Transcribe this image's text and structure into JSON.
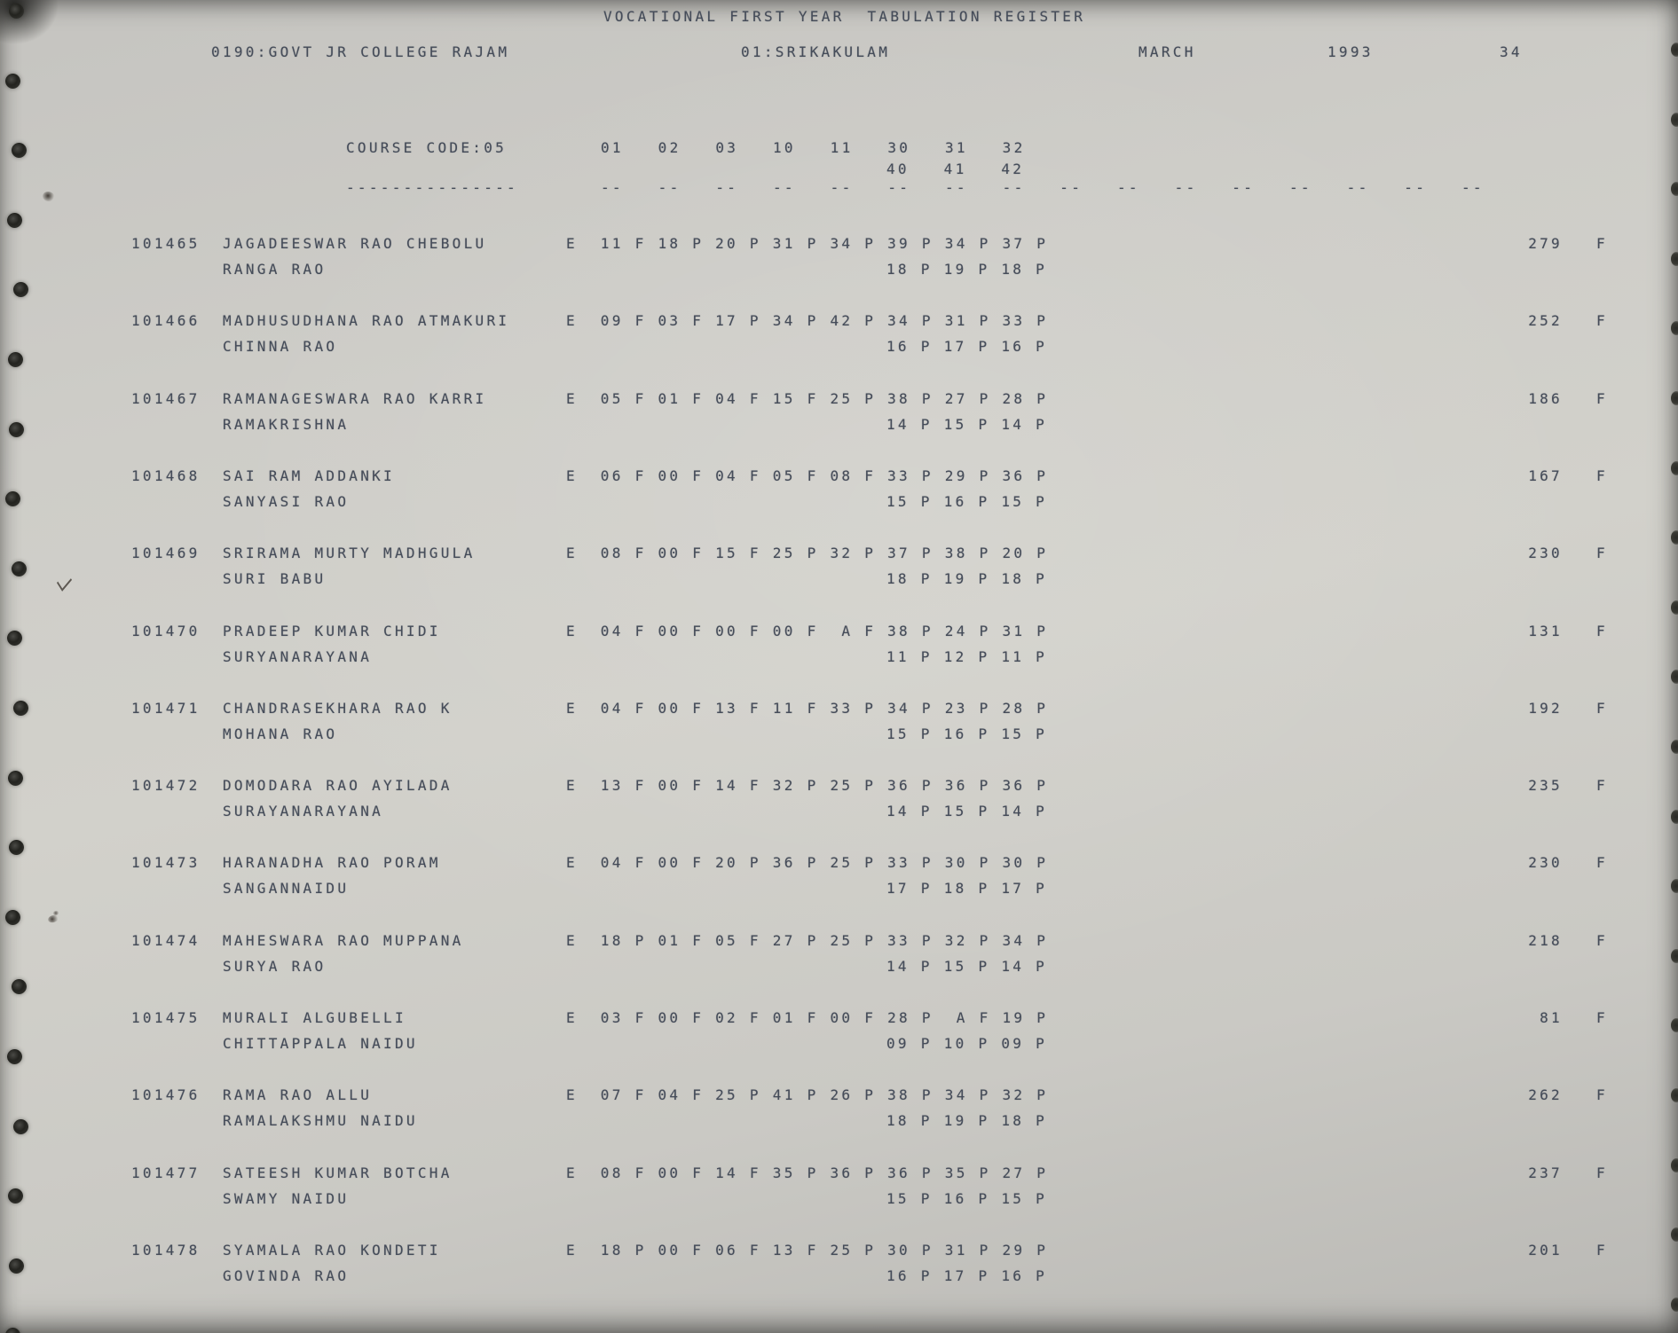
{
  "header": {
    "title": "VOCATIONAL FIRST YEAR  TABULATION REGISTER",
    "college": "0190:GOVT JR COLLEGE RAJAM",
    "district": "01:SRIKAKULAM",
    "month": "MARCH",
    "year": "1993",
    "page_number": "34"
  },
  "course": {
    "label": "COURSE CODE:05",
    "underline": "---------------",
    "columns_line1": "01   02   03   10   11   30   31   32",
    "columns_line2": "40   41   42",
    "column_dashes": "--   --   --   --   --   --   --   --   --   --   --   --   --   --   --   --"
  },
  "colors": {
    "paper": "#cecdc8",
    "ink": "#454c59"
  },
  "students": [
    {
      "roll": "101465",
      "name": "JAGADEESWAR RAO CHEBOLU",
      "guardian": "RANGA RAO",
      "marks1": "E  11 F 18 P 20 P 31 P 34 P 39 P 34 P 37 P",
      "marks2": "18 P 19 P 18 P",
      "total": "279",
      "result": "F"
    },
    {
      "roll": "101466",
      "name": "MADHUSUDHANA RAO ATMAKURI",
      "guardian": "CHINNA RAO",
      "marks1": "E  09 F 03 F 17 P 34 P 42 P 34 P 31 P 33 P",
      "marks2": "16 P 17 P 16 P",
      "total": "252",
      "result": "F"
    },
    {
      "roll": "101467",
      "name": "RAMANAGESWARA RAO KARRI",
      "guardian": "RAMAKRISHNA",
      "marks1": "E  05 F 01 F 04 F 15 F 25 P 38 P 27 P 28 P",
      "marks2": "14 P 15 P 14 P",
      "total": "186",
      "result": "F"
    },
    {
      "roll": "101468",
      "name": "SAI RAM ADDANKI",
      "guardian": "SANYASI RAO",
      "marks1": "E  06 F 00 F 04 F 05 F 08 F 33 P 29 P 36 P",
      "marks2": "15 P 16 P 15 P",
      "total": "167",
      "result": "F"
    },
    {
      "roll": "101469",
      "name": "SRIRAMA MURTY MADHGULA",
      "guardian": "SURI BABU",
      "marks1": "E  08 F 00 F 15 F 25 P 32 P 37 P 38 P 20 P",
      "marks2": "18 P 19 P 18 P",
      "total": "230",
      "result": "F"
    },
    {
      "roll": "101470",
      "name": "PRADEEP KUMAR CHIDI",
      "guardian": "SURYANARAYANA",
      "marks1": "E  04 F 00 F 00 F 00 F  A F 38 P 24 P 31 P",
      "marks2": "11 P 12 P 11 P",
      "total": "131",
      "result": "F"
    },
    {
      "roll": "101471",
      "name": "CHANDRASEKHARA RAO K",
      "guardian": "MOHANA RAO",
      "marks1": "E  04 F 00 F 13 F 11 F 33 P 34 P 23 P 28 P",
      "marks2": "15 P 16 P 15 P",
      "total": "192",
      "result": "F"
    },
    {
      "roll": "101472",
      "name": "DOMODARA RAO AYILADA",
      "guardian": "SURAYANARAYANA",
      "marks1": "E  13 F 00 F 14 F 32 P 25 P 36 P 36 P 36 P",
      "marks2": "14 P 15 P 14 P",
      "total": "235",
      "result": "F"
    },
    {
      "roll": "101473",
      "name": "HARANADHA RAO PORAM",
      "guardian": "SANGANNAIDU",
      "marks1": "E  04 F 00 F 20 P 36 P 25 P 33 P 30 P 30 P",
      "marks2": "17 P 18 P 17 P",
      "total": "230",
      "result": "F"
    },
    {
      "roll": "101474",
      "name": "MAHESWARA RAO MUPPANA",
      "guardian": "SURYA RAO",
      "marks1": "E  18 P 01 F 05 F 27 P 25 P 33 P 32 P 34 P",
      "marks2": "14 P 15 P 14 P",
      "total": "218",
      "result": "F"
    },
    {
      "roll": "101475",
      "name": "MURALI ALGUBELLI",
      "guardian": "CHITTAPPALA NAIDU",
      "marks1": "E  03 F 00 F 02 F 01 F 00 F 28 P  A F 19 P",
      "marks2": "09 P 10 P 09 P",
      "total": "81",
      "result": "F"
    },
    {
      "roll": "101476",
      "name": "RAMA RAO ALLU",
      "guardian": "RAMALAKSHMU NAIDU",
      "marks1": "E  07 F 04 F 25 P 41 P 26 P 38 P 34 P 32 P",
      "marks2": "18 P 19 P 18 P",
      "total": "262",
      "result": "F"
    },
    {
      "roll": "101477",
      "name": "SATEESH KUMAR BOTCHA",
      "guardian": "SWAMY NAIDU",
      "marks1": "E  08 F 00 F 14 F 35 P 36 P 36 P 35 P 27 P",
      "marks2": "15 P 16 P 15 P",
      "total": "237",
      "result": "F"
    },
    {
      "roll": "101478",
      "name": "SYAMALA RAO KONDETI",
      "guardian": "GOVINDA RAO",
      "marks1": "E  18 P 00 F 06 F 13 F 25 P 30 P 31 P 29 P",
      "marks2": "16 P 17 P 16 P",
      "total": "201",
      "result": "F"
    }
  ]
}
